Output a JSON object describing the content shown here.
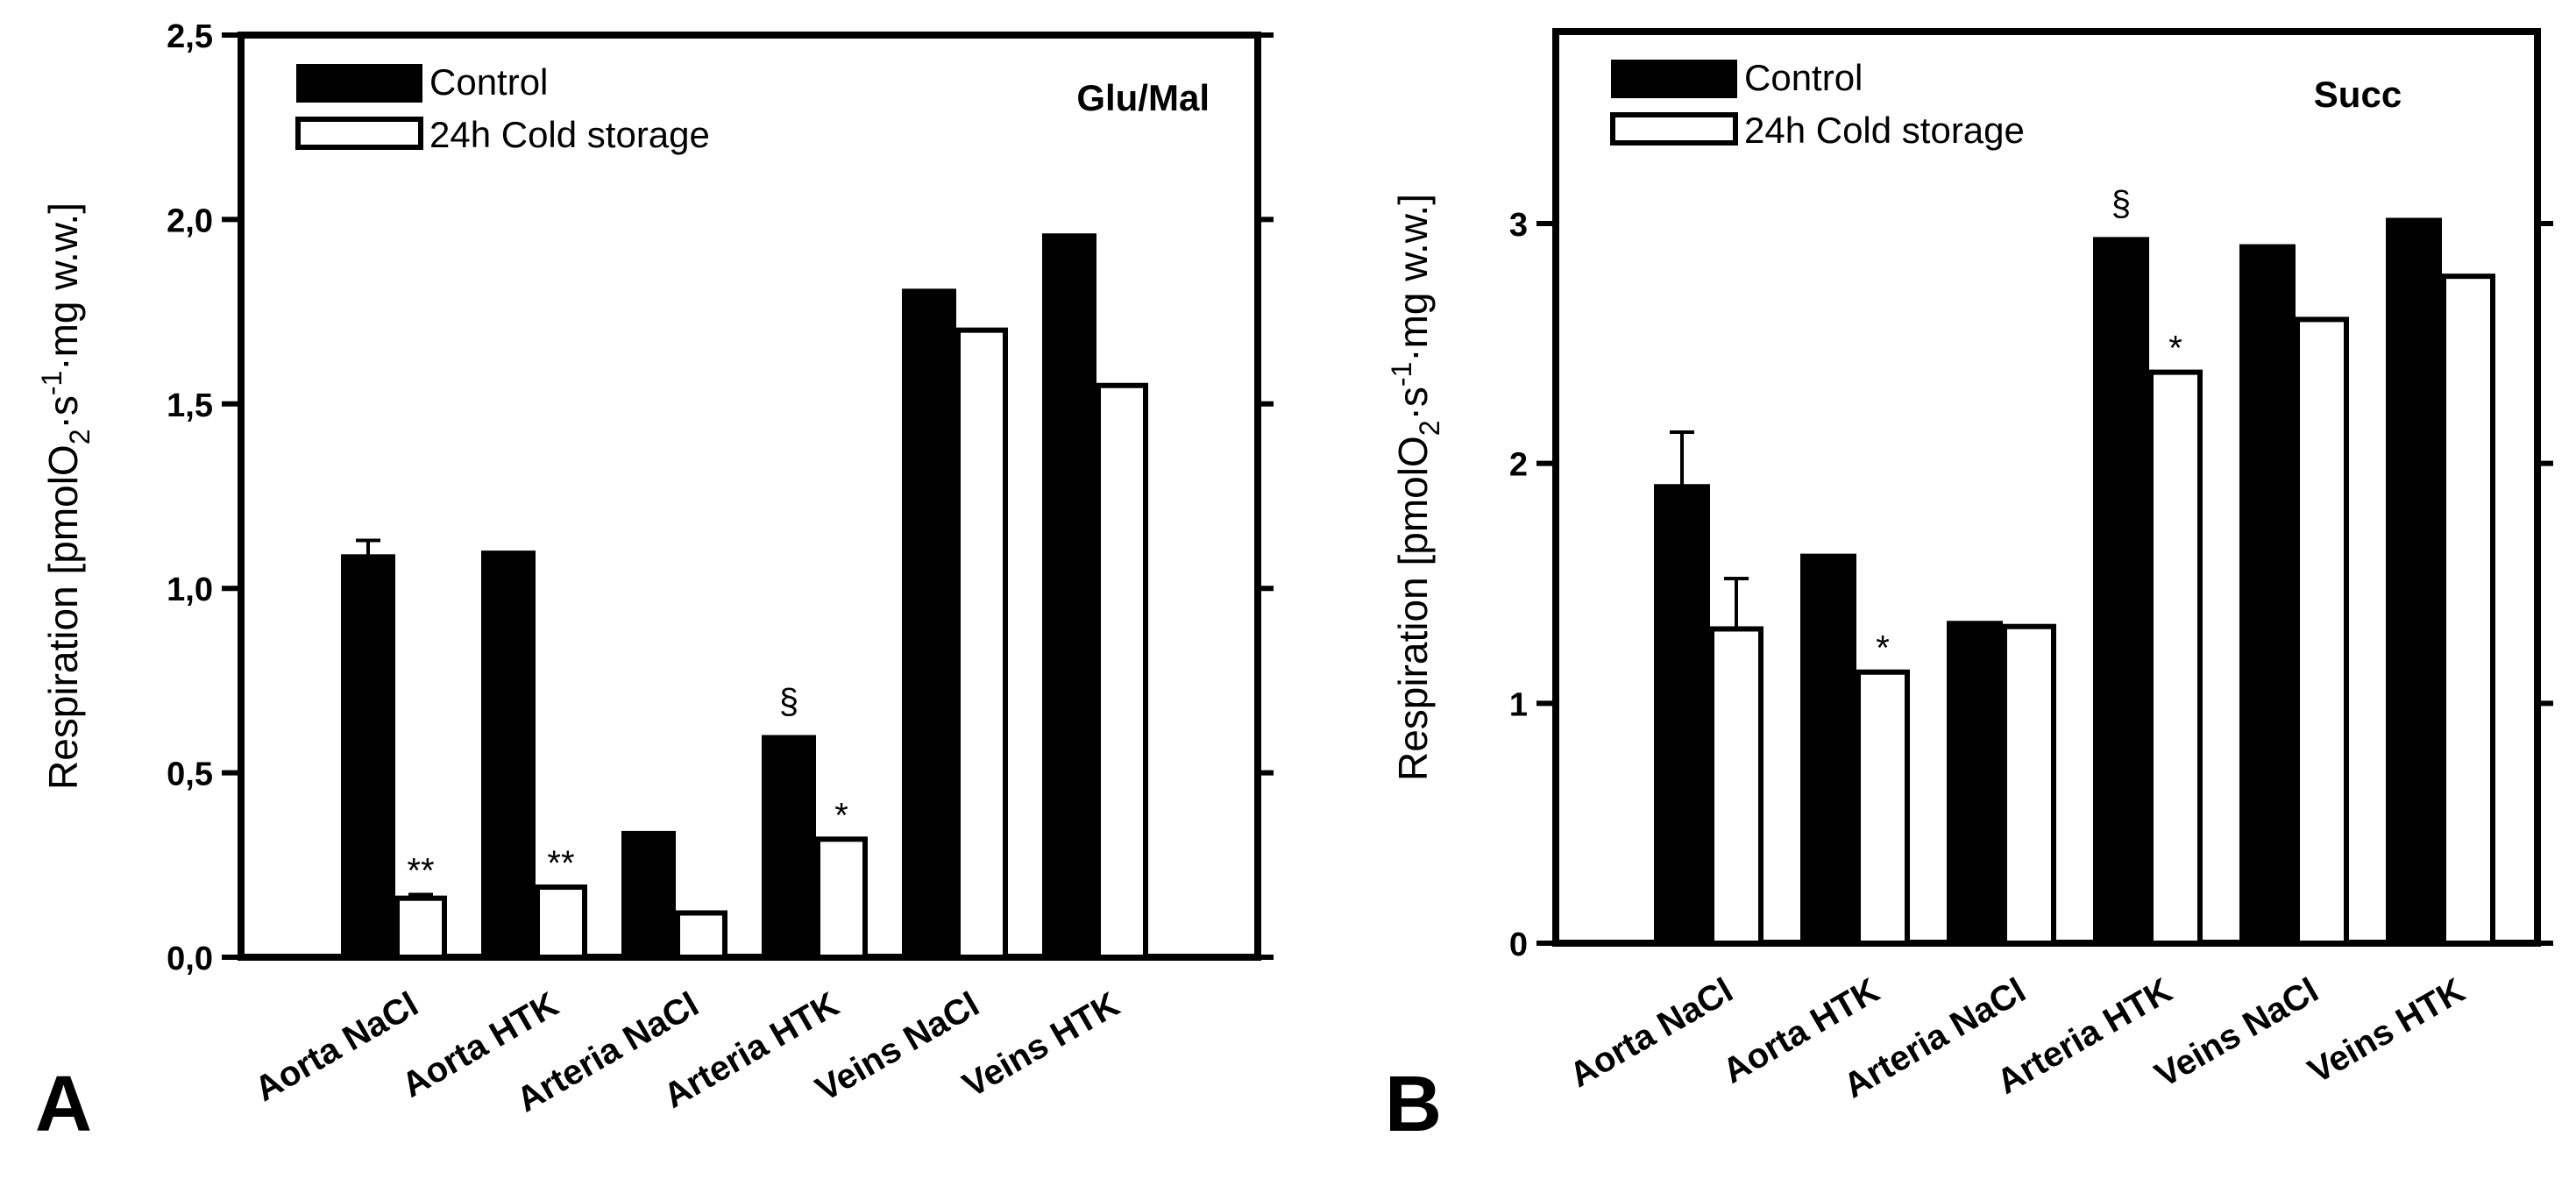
{
  "chart_data": [
    {
      "type": "bar",
      "panel_letter": "A",
      "title": "Glu/Mal",
      "ylabel": "Respiration [pmolO₂·s⁻¹·mg w.w.]",
      "xlabel": "",
      "ylim": [
        0,
        2.5
      ],
      "yticks": [
        "0,0",
        "0,5",
        "1,0",
        "1,5",
        "2,0",
        "2,5"
      ],
      "categories": [
        "Aorta NaCl",
        "Aorta HTK",
        "Arteria NaCl",
        "Arteria HTK",
        "Veins NaCl",
        "Veins HTK"
      ],
      "series": [
        {
          "name": "Control",
          "values": [
            1.09,
            1.1,
            0.34,
            0.6,
            1.81,
            1.96
          ],
          "errors": [
            0.04,
            0,
            0,
            0,
            0,
            0
          ],
          "color": "#000000"
        },
        {
          "name": "24h Cold storage",
          "values": [
            0.16,
            0.19,
            0.12,
            0.32,
            1.7,
            1.55
          ],
          "errors": [
            0.01,
            0,
            0,
            0,
            0,
            0
          ],
          "color": "#ffffff"
        }
      ],
      "annotations": [
        {
          "category": 0,
          "series": 1,
          "text": "**"
        },
        {
          "category": 1,
          "series": 1,
          "text": "**"
        },
        {
          "category": 3,
          "series": 0,
          "text": "§"
        },
        {
          "category": 3,
          "series": 1,
          "text": "*"
        }
      ],
      "legend_position": "top-left",
      "grid": false
    },
    {
      "type": "bar",
      "panel_letter": "B",
      "title": "Succ",
      "ylabel": "Respiration [pmolO₂·s⁻¹·mg w.w.]",
      "xlabel": "",
      "ylim": [
        0,
        3.8
      ],
      "yticks": [
        "0",
        "1",
        "2",
        "3"
      ],
      "categories": [
        "Aorta NaCl",
        "Aorta HTK",
        "Arteria NaCl",
        "Arteria HTK",
        "Veins NaCl",
        "Veins HTK"
      ],
      "series": [
        {
          "name": "Control",
          "values": [
            1.91,
            1.62,
            1.34,
            2.94,
            2.91,
            3.02
          ],
          "errors": [
            0.22,
            0,
            0,
            0,
            0,
            0
          ],
          "color": "#000000"
        },
        {
          "name": "24h Cold storage",
          "values": [
            1.31,
            1.13,
            1.32,
            2.38,
            2.6,
            2.78
          ],
          "errors": [
            0.21,
            0,
            0,
            0,
            0,
            0
          ],
          "color": "#ffffff"
        }
      ],
      "annotations": [
        {
          "category": 1,
          "series": 1,
          "text": "*"
        },
        {
          "category": 3,
          "series": 0,
          "text": "§"
        },
        {
          "category": 3,
          "series": 1,
          "text": "*"
        }
      ],
      "legend_position": "top-left",
      "grid": false
    }
  ]
}
